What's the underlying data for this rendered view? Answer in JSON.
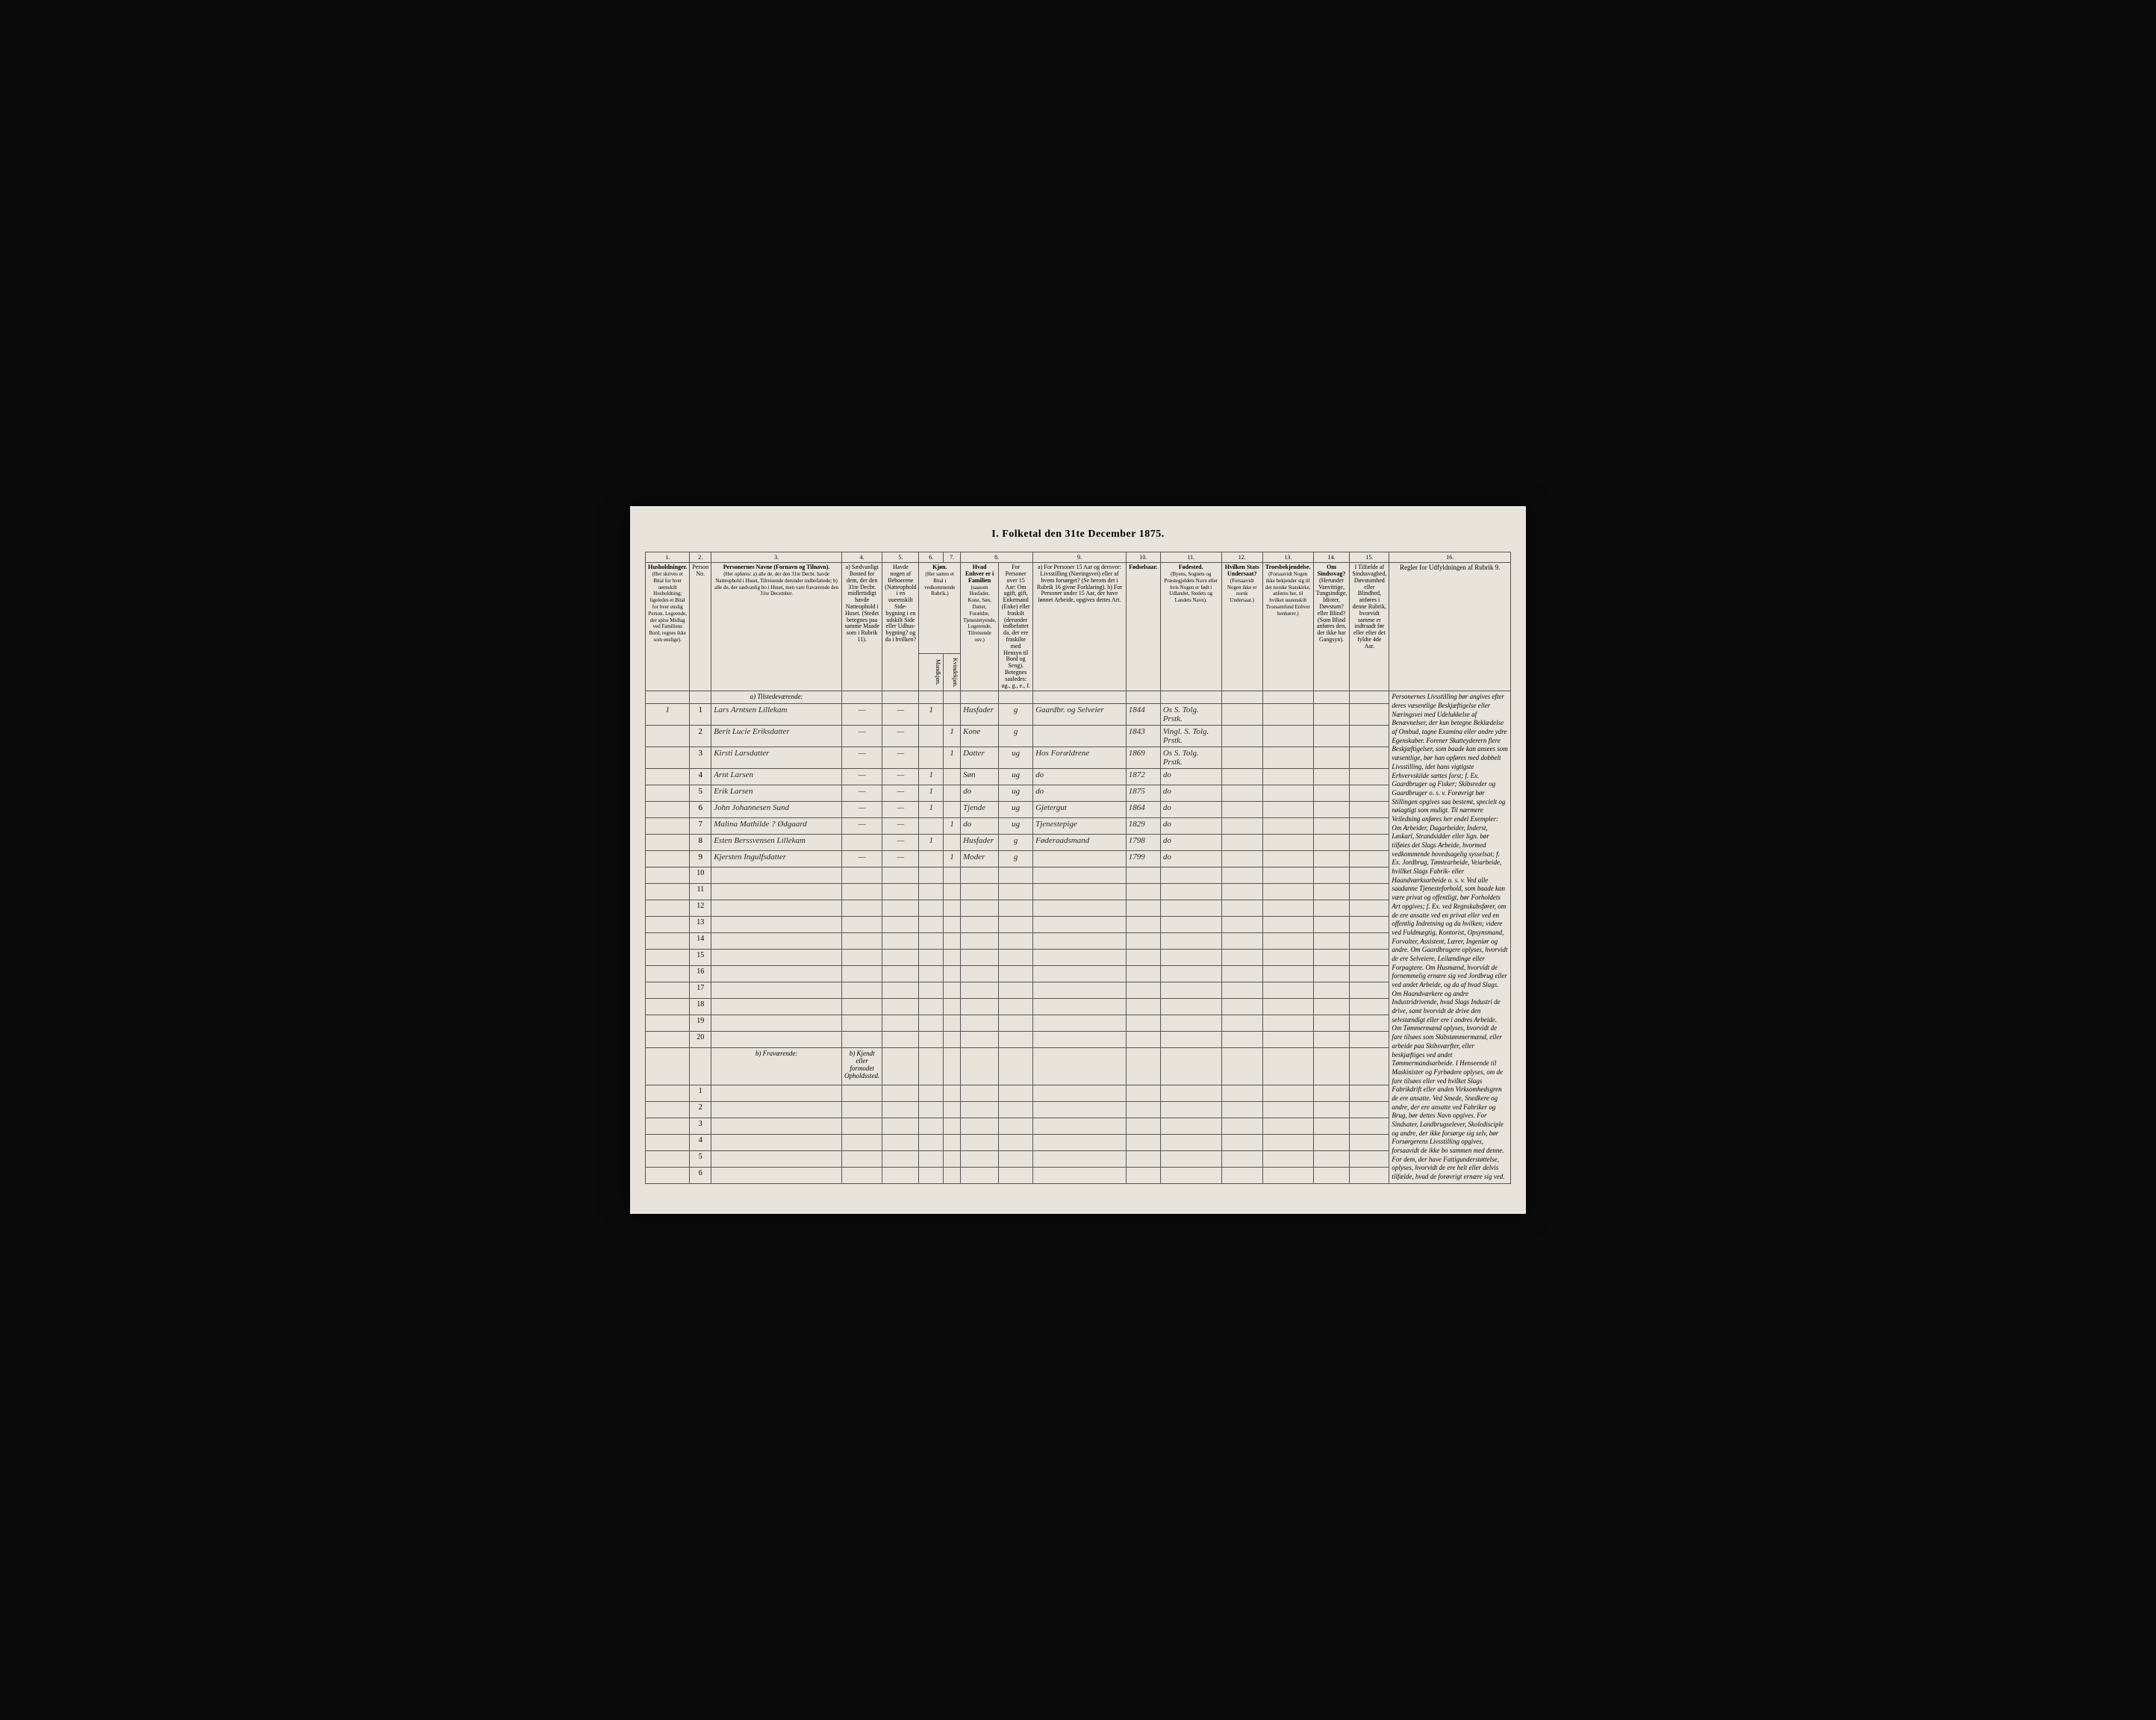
{
  "title": "I. Folketal den 31te December 1875.",
  "colors": {
    "page_bg": "#e8e4dc",
    "frame_bg": "#0a0a0a",
    "border": "#555555",
    "ink": "#2a2a2a"
  },
  "column_numbers": [
    "1.",
    "2.",
    "3.",
    "4.",
    "5.",
    "6.",
    "7.",
    "8.",
    "9.",
    "10.",
    "11.",
    "12.",
    "13.",
    "14.",
    "15.",
    "16."
  ],
  "headers": {
    "col1": "Husholdninger.",
    "col1_sub": "(Her skrives et Bital for hver ueenskilt Husholdning; ligeledes et Bital for hver enslig Person. Legeende, der spise Midlag ved Familiens Bord, regnes ikke som enslige).",
    "col2": "Person No.",
    "col3": "Personernes Navne (Fornavn og Tilnavn).",
    "col3_sub": "(Her opføres: a) alle de, der den 31te Decbr. havde Natteophold i Huset, Tilreisende derunder indbefattede; b) alle de, der sædvanlig bo i Huset, men vare fraværende den 31te December.",
    "col4": "a) Sædvanligt Bosted for dem, der den 31te Decbr. midlertidigt havde Natteophold i Huset. (Stedet betegnes paa samme Maade som i Rubrik 11).",
    "col5": "Havde nogen af Beboerene (Natteophold i en uueenskilt Side-bygning i en udskilt Side eller Udhus-bygning? og da i hvilken?",
    "col6_7": "Kjøn.",
    "col6_7_sub": "(Her sættes et Bital i vedkommende Rubrik.)",
    "col6": "Mandkjøn.",
    "col7": "Kvindekjøn.",
    "col8": "Hvad Enhver er i Familien",
    "col8_sub": "(saasom Husfader, Kone, Søn, Datter, Forældre, Tjenestetyende, Logerende, Tilreisende osv.)",
    "col8_extra": "For Personer over 15 Aar: Om ugift, gift, Enkemand (Enke) eller fraskilt (derunder indbefattet da, der ere fraskilte med Hensyn til Bord og Seng). Betegnes saaledes: ug., g., e., f.",
    "col9": "a) For Personer 15 Aar og derover: Livsstilling (Næringsvei) eller af hvem forsørget? (Se herom det i Rubrik 16 givne Forklaring). b) For Personer under 15 Aar, der have lønnet Arbeide, opgives dettes Art.",
    "col10": "Fødselsaar.",
    "col11": "Fødested.",
    "col11_sub": "(Byens, Sognets og Præstegjeldets Navn eller hvis Nogen er født i Udlandet, Stedets og Landets Navn).",
    "col12": "Hvilken Stats Undersaat?",
    "col12_sub": "(Forsaavidt Nogen ikke er norsk Undersaat.)",
    "col13": "Troesbekjendelse.",
    "col13_sub": "(Forsaavidt Nogen ikke bekjender sig til det norske Statskirke, anføres her, til hvilket uueenskilt Troesamfund Enhver henhører.)",
    "col14": "Om Sindssvag?",
    "col14_sub": "(Herunder Vanvittige, Tungsindige, Idioter, Døvstum? eller Blind? (Som Blind anføres den, der ikke har Gangsyn).",
    "col15": "I Tilfælde af Sindssvaghed, Døvstumhed eller Blindhed, anføres i denne Rubrik, hvorvidt samme er indtraadt før eller efter det fyldte 4de Aar.",
    "col16": "Regler for Udfyldningen af Rubrik 9."
  },
  "section_a": "a) Tilstedeværende:",
  "section_b": "b) Fraværende:",
  "section_b_col4": "b) Kjendt eller formodet Opholdssted.",
  "rows": [
    {
      "num": "1",
      "hh": "1",
      "name": "Lars Arntsen Lillekam",
      "col4": "—",
      "col5": "—",
      "m": "1",
      "f": "",
      "family": "Husfader",
      "status": "g",
      "occupation": "Gaardbr. og Selveier",
      "year": "1844",
      "birthplace": "Os S. Tolg. Prstk."
    },
    {
      "num": "2",
      "hh": "",
      "name": "Berit Lucie Eriksdatter",
      "col4": "—",
      "col5": "—",
      "m": "",
      "f": "1",
      "family": "Kone",
      "status": "g",
      "occupation": "",
      "year": "1843",
      "birthplace": "Vingl. S. Tolg. Prstk."
    },
    {
      "num": "3",
      "hh": "",
      "name": "Kirsti Larsdatter",
      "col4": "—",
      "col5": "—",
      "m": "",
      "f": "1",
      "family": "Datter",
      "status": "ug",
      "occupation": "Hos Forældrene",
      "year": "1869",
      "birthplace": "Os S. Tolg. Prstk."
    },
    {
      "num": "4",
      "hh": "",
      "name": "Arnt Larsen",
      "col4": "—",
      "col5": "—",
      "m": "1",
      "f": "",
      "family": "Søn",
      "status": "ug",
      "occupation": "do",
      "year": "1872",
      "birthplace": "do"
    },
    {
      "num": "5",
      "hh": "",
      "name": "Erik Larsen",
      "col4": "—",
      "col5": "—",
      "m": "1",
      "f": "",
      "family": "do",
      "status": "ug",
      "occupation": "do",
      "year": "1875",
      "birthplace": "do"
    },
    {
      "num": "6",
      "hh": "",
      "name": "John Johannesen Sund",
      "col4": "—",
      "col5": "—",
      "m": "1",
      "f": "",
      "family": "Tjende",
      "status": "ug",
      "occupation": "Gjetergut",
      "year": "1864",
      "birthplace": "do"
    },
    {
      "num": "7",
      "hh": "",
      "name": "Malina Mathilde ? Ødgaard",
      "col4": "—",
      "col5": "—",
      "m": "",
      "f": "1",
      "family": "do",
      "status": "ug",
      "occupation": "Tjenestepige",
      "year": "1829",
      "birthplace": "do"
    },
    {
      "num": "8",
      "hh": "",
      "name": "Esten Berssvensen Lillekam",
      "col4": "",
      "col5": "—",
      "m": "1",
      "f": "",
      "family": "Husfader",
      "status": "g",
      "occupation": "Føderaadsmand",
      "year": "1798",
      "birthplace": "do"
    },
    {
      "num": "9",
      "hh": "",
      "name": "Kjersten Ingulfsdatter",
      "col4": "—",
      "col5": "—",
      "m": "",
      "f": "1",
      "family": "Moder",
      "status": "g",
      "occupation": "",
      "year": "1799",
      "birthplace": "do"
    }
  ],
  "empty_rows_a": [
    "10",
    "11",
    "12",
    "13",
    "14",
    "15",
    "16",
    "17",
    "18",
    "19",
    "20"
  ],
  "empty_rows_b": [
    "1",
    "2",
    "3",
    "4",
    "5",
    "6"
  ],
  "instructions_text": "Personernes Livsstilling bør angives efter deres væsentlige Beskjæftigelse eller Næringsvei med Udelukkelse af Benævnelser, der kun betegne Beklædelse af Ombud, tagne Examina eller andre ydre Egenskaber. Forener Skatteyderern flere Beskjæftigelser, som baade kan ansees som væsentlige, bør han opføres med dobbelt Livsstilling, idet hans vigtigste Erhvervskilde sættes forst; f. Ex. Gaardbruger og Fisker; Skibsreder og Gaardbruger o. s. v. Forøvrigt bør Stillingen opgives saa bestemt, specielt og nøiagtigt som muligt. Til nærmere Veiledning anføres her endel Exempler: Om Arbeider, Dagarbeider, Inderst, Løskarl, Strandsidder eller lign. bør tilføies det Slags Arbeide, hvormed vedkommende hovedsagelig sysselsat; f. Ex. Jordbrug, Tømtearbeide, Veiarbeide, hvillket Slags Fabrik- eller Haandværksarbeide o. s. v. Ved alle saadanne Tjenesteforhold, som baade kan være privat og offentligt, bør Forholdets Art opgives; f. Ex. ved Regnskabsfører, om de ere ansatte ved en privat eller ved en offentlig Indretning og da hvilken; videre ved Fuldmægtig, Kontorist, Opsynsmand, Forvalter, Assistent, Lærer, Ingeniør og andre. Om Gaardbrugere oplyses, hvorvidt de ere Selveiere, Leilændinge eller Forpagtere. Om Husmænd, hvorvidt de fornemmelig ernære sig ved Jordbrug eller ved andet Arbeide, og da af hvad Slags. Om Haandværkere og andre Industridrivende, hvad Slags Industri de drive, samt hvorvidt de drive den selvstændigt eller ere i andres Arbeide. Om Tømmermænd oplyses, hvorvidt de fare tilsøes som Skibstømmermænd, eller arbeide paa Skibsværfter, eller beskjæftiges ved andet Tømmermandsarbeide. I Henseende til Maskinister og Fyrbødere oplyses, om de fare tilsøes eller ved hvilket Slags Fabrikdrift eller anden Virksomhedsgren de ere ansatte. Ved Smede, Snedkere og andre, der ere ansatte ved Fabriker og Brug, bør dettes Navn opgives. For Sindsater, Landbrugselever, Skoledisciple og andre, der ikke forsørge sig selv, bør Forsørgerens Livsstilling opgives, forsaavidt de ikke bo sammen med denne. For dem, der have Fattigunderstøttelse, oplyses, hvorvidt de ere helt eller delvis tilfælde, hvad de forøvrigt ernære sig ved."
}
